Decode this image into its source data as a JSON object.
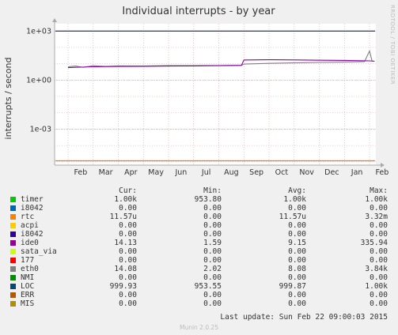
{
  "title": "Individual interrupts - by year",
  "side_text": "RRDTOOL / TOBI OETIKER",
  "colors": {
    "background": "#f0f0f0",
    "plot_background": "#ffffff",
    "grid": "#e8a0a0",
    "axis": "#aaaaaa"
  },
  "chart_data": {
    "type": "line",
    "title": "Individual interrupts - by year",
    "ylabel": "interrupts / second",
    "yscale": "log",
    "ylim": [
      6.3e-06,
      2800
    ],
    "ytick_labels": [
      "1e+03",
      "1e+00",
      "1e-03"
    ],
    "yticks": [
      1000,
      1,
      0.001
    ],
    "xtick_labels": [
      "Feb",
      "Mar",
      "Apr",
      "May",
      "Jun",
      "Jul",
      "Aug",
      "Sep",
      "Oct",
      "Nov",
      "Dec",
      "Jan",
      "Feb"
    ],
    "x_months_note": "months from Feb 2014 to Feb 2015",
    "grid": true,
    "series": [
      {
        "name": "LOC",
        "color": "#0a2a5e",
        "kind": "flat",
        "y": [
          999.93,
          999.93
        ]
      },
      {
        "name": "rtc",
        "color": "#f08000",
        "kind": "flat",
        "y": [
          1.157e-05,
          1.157e-05
        ]
      },
      {
        "name": "eth0",
        "color": "#7f7f7f",
        "kind": "trace",
        "x": [
          0,
          0.3,
          0.6,
          1,
          1.5,
          2,
          3,
          4,
          5,
          6,
          6.5,
          6.9,
          7.0,
          8,
          9,
          10,
          11,
          11.8,
          12.0,
          12.1,
          12.2
        ],
        "y": [
          6.5,
          7.2,
          6.0,
          7.5,
          6.8,
          7.4,
          7.2,
          7.6,
          7.7,
          7.8,
          8.0,
          7.9,
          9.5,
          10.5,
          11.2,
          12.0,
          12.5,
          13.5,
          60,
          14.5,
          14.08
        ]
      },
      {
        "name": "ide0",
        "color": "#8a00b0",
        "kind": "trace",
        "x": [
          0,
          0.5,
          1,
          2,
          3,
          4,
          5,
          6,
          6.5,
          6.9,
          7.0,
          8,
          9,
          10,
          11,
          11.8,
          12.0,
          12.2
        ],
        "y": [
          5.8,
          6.2,
          6.5,
          6.8,
          7.0,
          7.2,
          7.4,
          7.6,
          7.8,
          8.0,
          17.0,
          17.5,
          17.2,
          16.5,
          16.0,
          15.2,
          15.0,
          14.13
        ]
      }
    ],
    "legend_columns": [
      "Cur:",
      "Min:",
      "Avg:",
      "Max:"
    ],
    "legend": [
      {
        "name": "timer",
        "color": "#00cc00",
        "cur": "1.00k",
        "min": "953.80",
        "avg": "1.00k",
        "max": "1.00k"
      },
      {
        "name": "i8042",
        "color": "#0066b3",
        "cur": "0.00",
        "min": "0.00",
        "avg": "0.00",
        "max": "0.00"
      },
      {
        "name": "rtc",
        "color": "#ff8000",
        "cur": "11.57u",
        "min": "0.00",
        "avg": "11.57u",
        "max": "3.32m"
      },
      {
        "name": "acpi",
        "color": "#ffcc00",
        "cur": "0.00",
        "min": "0.00",
        "avg": "0.00",
        "max": "0.00"
      },
      {
        "name": "i8042",
        "color": "#330099",
        "cur": "0.00",
        "min": "0.00",
        "avg": "0.00",
        "max": "0.00"
      },
      {
        "name": "ide0",
        "color": "#990099",
        "cur": "14.13",
        "min": "1.59",
        "avg": "9.15",
        "max": "335.94"
      },
      {
        "name": "sata_via",
        "color": "#ccff00",
        "cur": "0.00",
        "min": "0.00",
        "avg": "0.00",
        "max": "0.00"
      },
      {
        "name": "177",
        "color": "#ff0000",
        "cur": "0.00",
        "min": "0.00",
        "avg": "0.00",
        "max": "0.00"
      },
      {
        "name": "eth0",
        "color": "#808080",
        "cur": "14.08",
        "min": "2.02",
        "avg": "8.08",
        "max": "3.84k"
      },
      {
        "name": "NMI",
        "color": "#008f00",
        "cur": "0.00",
        "min": "0.00",
        "avg": "0.00",
        "max": "0.00"
      },
      {
        "name": "LOC",
        "color": "#00487d",
        "cur": "999.93",
        "min": "953.55",
        "avg": "999.87",
        "max": "1.00k"
      },
      {
        "name": "ERR",
        "color": "#b35a00",
        "cur": "0.00",
        "min": "0.00",
        "avg": "0.00",
        "max": "0.00"
      },
      {
        "name": "MIS",
        "color": "#b38f00",
        "cur": "0.00",
        "min": "0.00",
        "avg": "0.00",
        "max": "0.00"
      }
    ]
  },
  "footer": {
    "last_update": "Last update: Sun Feb 22 09:00:03 2015",
    "version": "Munin 2.0.25"
  }
}
